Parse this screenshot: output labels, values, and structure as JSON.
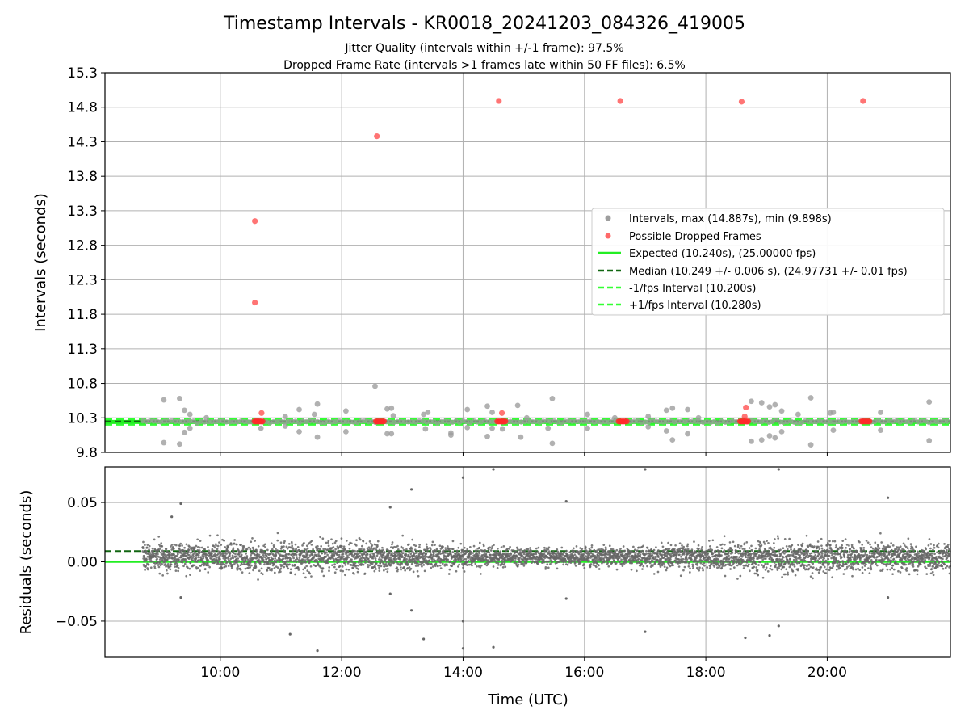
{
  "title": "Timestamp Intervals - KR0018_20241203_084326_419005",
  "subtitle_1": "Jitter Quality (intervals within +/-1 frame): 97.5%",
  "subtitle_2": "Dropped Frame Rate (intervals >1 frames late within 50 FF files): 6.5%",
  "colors": {
    "interval_points": "#9e9e9e",
    "dropped_points": "#ff2a2a",
    "expected_line": "#22ee22",
    "median_line": "#116611",
    "fps_band": "#33ff33",
    "residual_points": "#666666",
    "grid": "#b0b0b0"
  },
  "chart_data": [
    {
      "type": "scatter",
      "ylabel": "Intervals (seconds)",
      "xlabel": "",
      "xlim_hours": [
        8.1,
        22.03
      ],
      "ylim": [
        9.8,
        15.3
      ],
      "yticks": [
        9.8,
        10.3,
        10.8,
        11.3,
        11.8,
        12.3,
        12.8,
        13.3,
        13.8,
        14.3,
        14.8,
        15.3
      ],
      "ytick_labels": [
        "9.8",
        "10.3",
        "10.8",
        "11.3",
        "11.8",
        "12.3",
        "12.8",
        "13.3",
        "13.8",
        "14.3",
        "14.8",
        "15.3"
      ],
      "xticks_hours": [
        10,
        12,
        14,
        16,
        18,
        20
      ],
      "grid": true,
      "legend_position": "right",
      "legend": [
        {
          "label": "Intervals, max (14.887s), min (9.898s)",
          "kind": "dot-gray"
        },
        {
          "label": "Possible Dropped Frames",
          "kind": "dot-red"
        },
        {
          "label": "Expected (10.240s), (25.00000 fps)",
          "kind": "line-green"
        },
        {
          "label": "Median (10.249 +/- 0.006 s), (24.97731 +/- 0.01 fps)",
          "kind": "dash-darkgreen"
        },
        {
          "label": "-1/fps Interval (10.200s)",
          "kind": "dash-green"
        },
        {
          "label": "+1/fps Interval (10.280s)",
          "kind": "dash-green"
        }
      ],
      "expected": 10.24,
      "median": 10.249,
      "minus_fps": 10.2,
      "plus_fps": 10.28,
      "dropped_points": [
        {
          "x": 10.57,
          "y": 13.15
        },
        {
          "x": 10.57,
          "y": 11.97
        },
        {
          "x": 10.68,
          "y": 10.37
        },
        {
          "x": 12.58,
          "y": 14.38
        },
        {
          "x": 14.59,
          "y": 14.89
        },
        {
          "x": 14.64,
          "y": 10.37
        },
        {
          "x": 16.59,
          "y": 14.89
        },
        {
          "x": 18.59,
          "y": 14.88
        },
        {
          "x": 18.64,
          "y": 10.32
        },
        {
          "x": 18.66,
          "y": 10.45
        },
        {
          "x": 20.59,
          "y": 14.89
        }
      ],
      "dropped_clusters_hours": [
        10.63,
        12.63,
        14.63,
        16.63,
        18.63,
        20.63
      ],
      "interval_outliers": [
        {
          "x": 9.07,
          "y": 10.56
        },
        {
          "x": 9.07,
          "y": 9.94
        },
        {
          "x": 9.33,
          "y": 10.58
        },
        {
          "x": 9.33,
          "y": 9.92
        },
        {
          "x": 9.41,
          "y": 10.41
        },
        {
          "x": 9.41,
          "y": 10.09
        },
        {
          "x": 9.5,
          "y": 10.35
        },
        {
          "x": 9.5,
          "y": 10.15
        },
        {
          "x": 9.77,
          "y": 10.3
        },
        {
          "x": 10.67,
          "y": 10.15
        },
        {
          "x": 11.07,
          "y": 10.32
        },
        {
          "x": 11.07,
          "y": 10.18
        },
        {
          "x": 11.3,
          "y": 10.42
        },
        {
          "x": 11.3,
          "y": 10.1
        },
        {
          "x": 11.55,
          "y": 10.35
        },
        {
          "x": 11.6,
          "y": 10.5
        },
        {
          "x": 11.6,
          "y": 10.02
        },
        {
          "x": 12.07,
          "y": 10.4
        },
        {
          "x": 12.07,
          "y": 10.1
        },
        {
          "x": 12.55,
          "y": 10.76
        },
        {
          "x": 12.75,
          "y": 10.43
        },
        {
          "x": 12.75,
          "y": 10.07
        },
        {
          "x": 12.82,
          "y": 10.44
        },
        {
          "x": 12.82,
          "y": 10.07
        },
        {
          "x": 12.85,
          "y": 10.33
        },
        {
          "x": 13.35,
          "y": 10.35
        },
        {
          "x": 13.38,
          "y": 10.14
        },
        {
          "x": 13.42,
          "y": 10.38
        },
        {
          "x": 13.8,
          "y": 10.08
        },
        {
          "x": 13.8,
          "y": 10.05
        },
        {
          "x": 14.07,
          "y": 10.42
        },
        {
          "x": 14.07,
          "y": 10.16
        },
        {
          "x": 14.4,
          "y": 10.47
        },
        {
          "x": 14.4,
          "y": 10.03
        },
        {
          "x": 14.48,
          "y": 10.38
        },
        {
          "x": 14.48,
          "y": 10.15
        },
        {
          "x": 14.65,
          "y": 10.14
        },
        {
          "x": 14.9,
          "y": 10.48
        },
        {
          "x": 14.95,
          "y": 10.02
        },
        {
          "x": 15.05,
          "y": 10.3
        },
        {
          "x": 15.4,
          "y": 10.15
        },
        {
          "x": 15.47,
          "y": 10.58
        },
        {
          "x": 15.47,
          "y": 9.93
        },
        {
          "x": 16.05,
          "y": 10.35
        },
        {
          "x": 16.05,
          "y": 10.15
        },
        {
          "x": 16.5,
          "y": 10.3
        },
        {
          "x": 17.05,
          "y": 10.32
        },
        {
          "x": 17.05,
          "y": 10.17
        },
        {
          "x": 17.35,
          "y": 10.41
        },
        {
          "x": 17.35,
          "y": 10.11
        },
        {
          "x": 17.45,
          "y": 10.44
        },
        {
          "x": 17.45,
          "y": 9.98
        },
        {
          "x": 17.7,
          "y": 10.42
        },
        {
          "x": 17.7,
          "y": 10.07
        },
        {
          "x": 17.88,
          "y": 10.3
        },
        {
          "x": 18.75,
          "y": 10.54
        },
        {
          "x": 18.75,
          "y": 9.96
        },
        {
          "x": 18.92,
          "y": 10.52
        },
        {
          "x": 18.92,
          "y": 9.98
        },
        {
          "x": 19.05,
          "y": 10.46
        },
        {
          "x": 19.05,
          "y": 10.04
        },
        {
          "x": 19.14,
          "y": 10.49
        },
        {
          "x": 19.14,
          "y": 10.01
        },
        {
          "x": 19.25,
          "y": 10.4
        },
        {
          "x": 19.25,
          "y": 10.1
        },
        {
          "x": 19.52,
          "y": 10.35
        },
        {
          "x": 19.73,
          "y": 10.59
        },
        {
          "x": 19.73,
          "y": 9.91
        },
        {
          "x": 20.05,
          "y": 10.37
        },
        {
          "x": 20.1,
          "y": 10.12
        },
        {
          "x": 20.1,
          "y": 10.38
        },
        {
          "x": 20.88,
          "y": 10.38
        },
        {
          "x": 20.88,
          "y": 10.12
        },
        {
          "x": 21.68,
          "y": 10.53
        },
        {
          "x": 21.68,
          "y": 9.97
        }
      ]
    },
    {
      "type": "scatter",
      "ylabel": "Residuals (seconds)",
      "xlabel": "Time (UTC)",
      "xlim_hours": [
        8.1,
        22.03
      ],
      "ylim": [
        -0.08,
        0.08
      ],
      "yticks": [
        -0.05,
        0.0,
        0.05
      ],
      "ytick_labels": [
        "−0.05",
        "0.00",
        "0.05"
      ],
      "xticks_hours": [
        10,
        12,
        14,
        16,
        18,
        20
      ],
      "xtick_labels": [
        "10:00",
        "12:00",
        "14:00",
        "16:00",
        "18:00",
        "20:00"
      ],
      "grid": true,
      "zero_line": 0.0,
      "median_offset": 0.009,
      "residual_x_start_hours": 8.72,
      "residual_x_end_hours": 22.03,
      "residual_sample_interval_s": 10.25,
      "residual_trend": {
        "start_hours": 8.72,
        "start_value": 0.004,
        "end_value": 0.005
      },
      "residual_outliers": [
        {
          "x": 9.35,
          "y": 0.049
        },
        {
          "x": 9.2,
          "y": 0.038
        },
        {
          "x": 9.35,
          "y": -0.03
        },
        {
          "x": 11.15,
          "y": -0.061
        },
        {
          "x": 11.6,
          "y": -0.075
        },
        {
          "x": 12.8,
          "y": 0.046
        },
        {
          "x": 12.8,
          "y": -0.027
        },
        {
          "x": 13.15,
          "y": 0.061
        },
        {
          "x": 13.15,
          "y": -0.041
        },
        {
          "x": 13.35,
          "y": -0.065
        },
        {
          "x": 14.0,
          "y": 0.071
        },
        {
          "x": 14.0,
          "y": -0.05
        },
        {
          "x": 14.0,
          "y": -0.073
        },
        {
          "x": 14.5,
          "y": 0.078
        },
        {
          "x": 14.5,
          "y": -0.072
        },
        {
          "x": 15.7,
          "y": 0.051
        },
        {
          "x": 15.7,
          "y": -0.031
        },
        {
          "x": 17.0,
          "y": 0.078
        },
        {
          "x": 17.0,
          "y": -0.059
        },
        {
          "x": 18.65,
          "y": -0.064
        },
        {
          "x": 19.05,
          "y": -0.062
        },
        {
          "x": 19.2,
          "y": 0.078
        },
        {
          "x": 19.2,
          "y": -0.054
        },
        {
          "x": 21.0,
          "y": 0.054
        },
        {
          "x": 21.0,
          "y": -0.03
        }
      ]
    }
  ]
}
